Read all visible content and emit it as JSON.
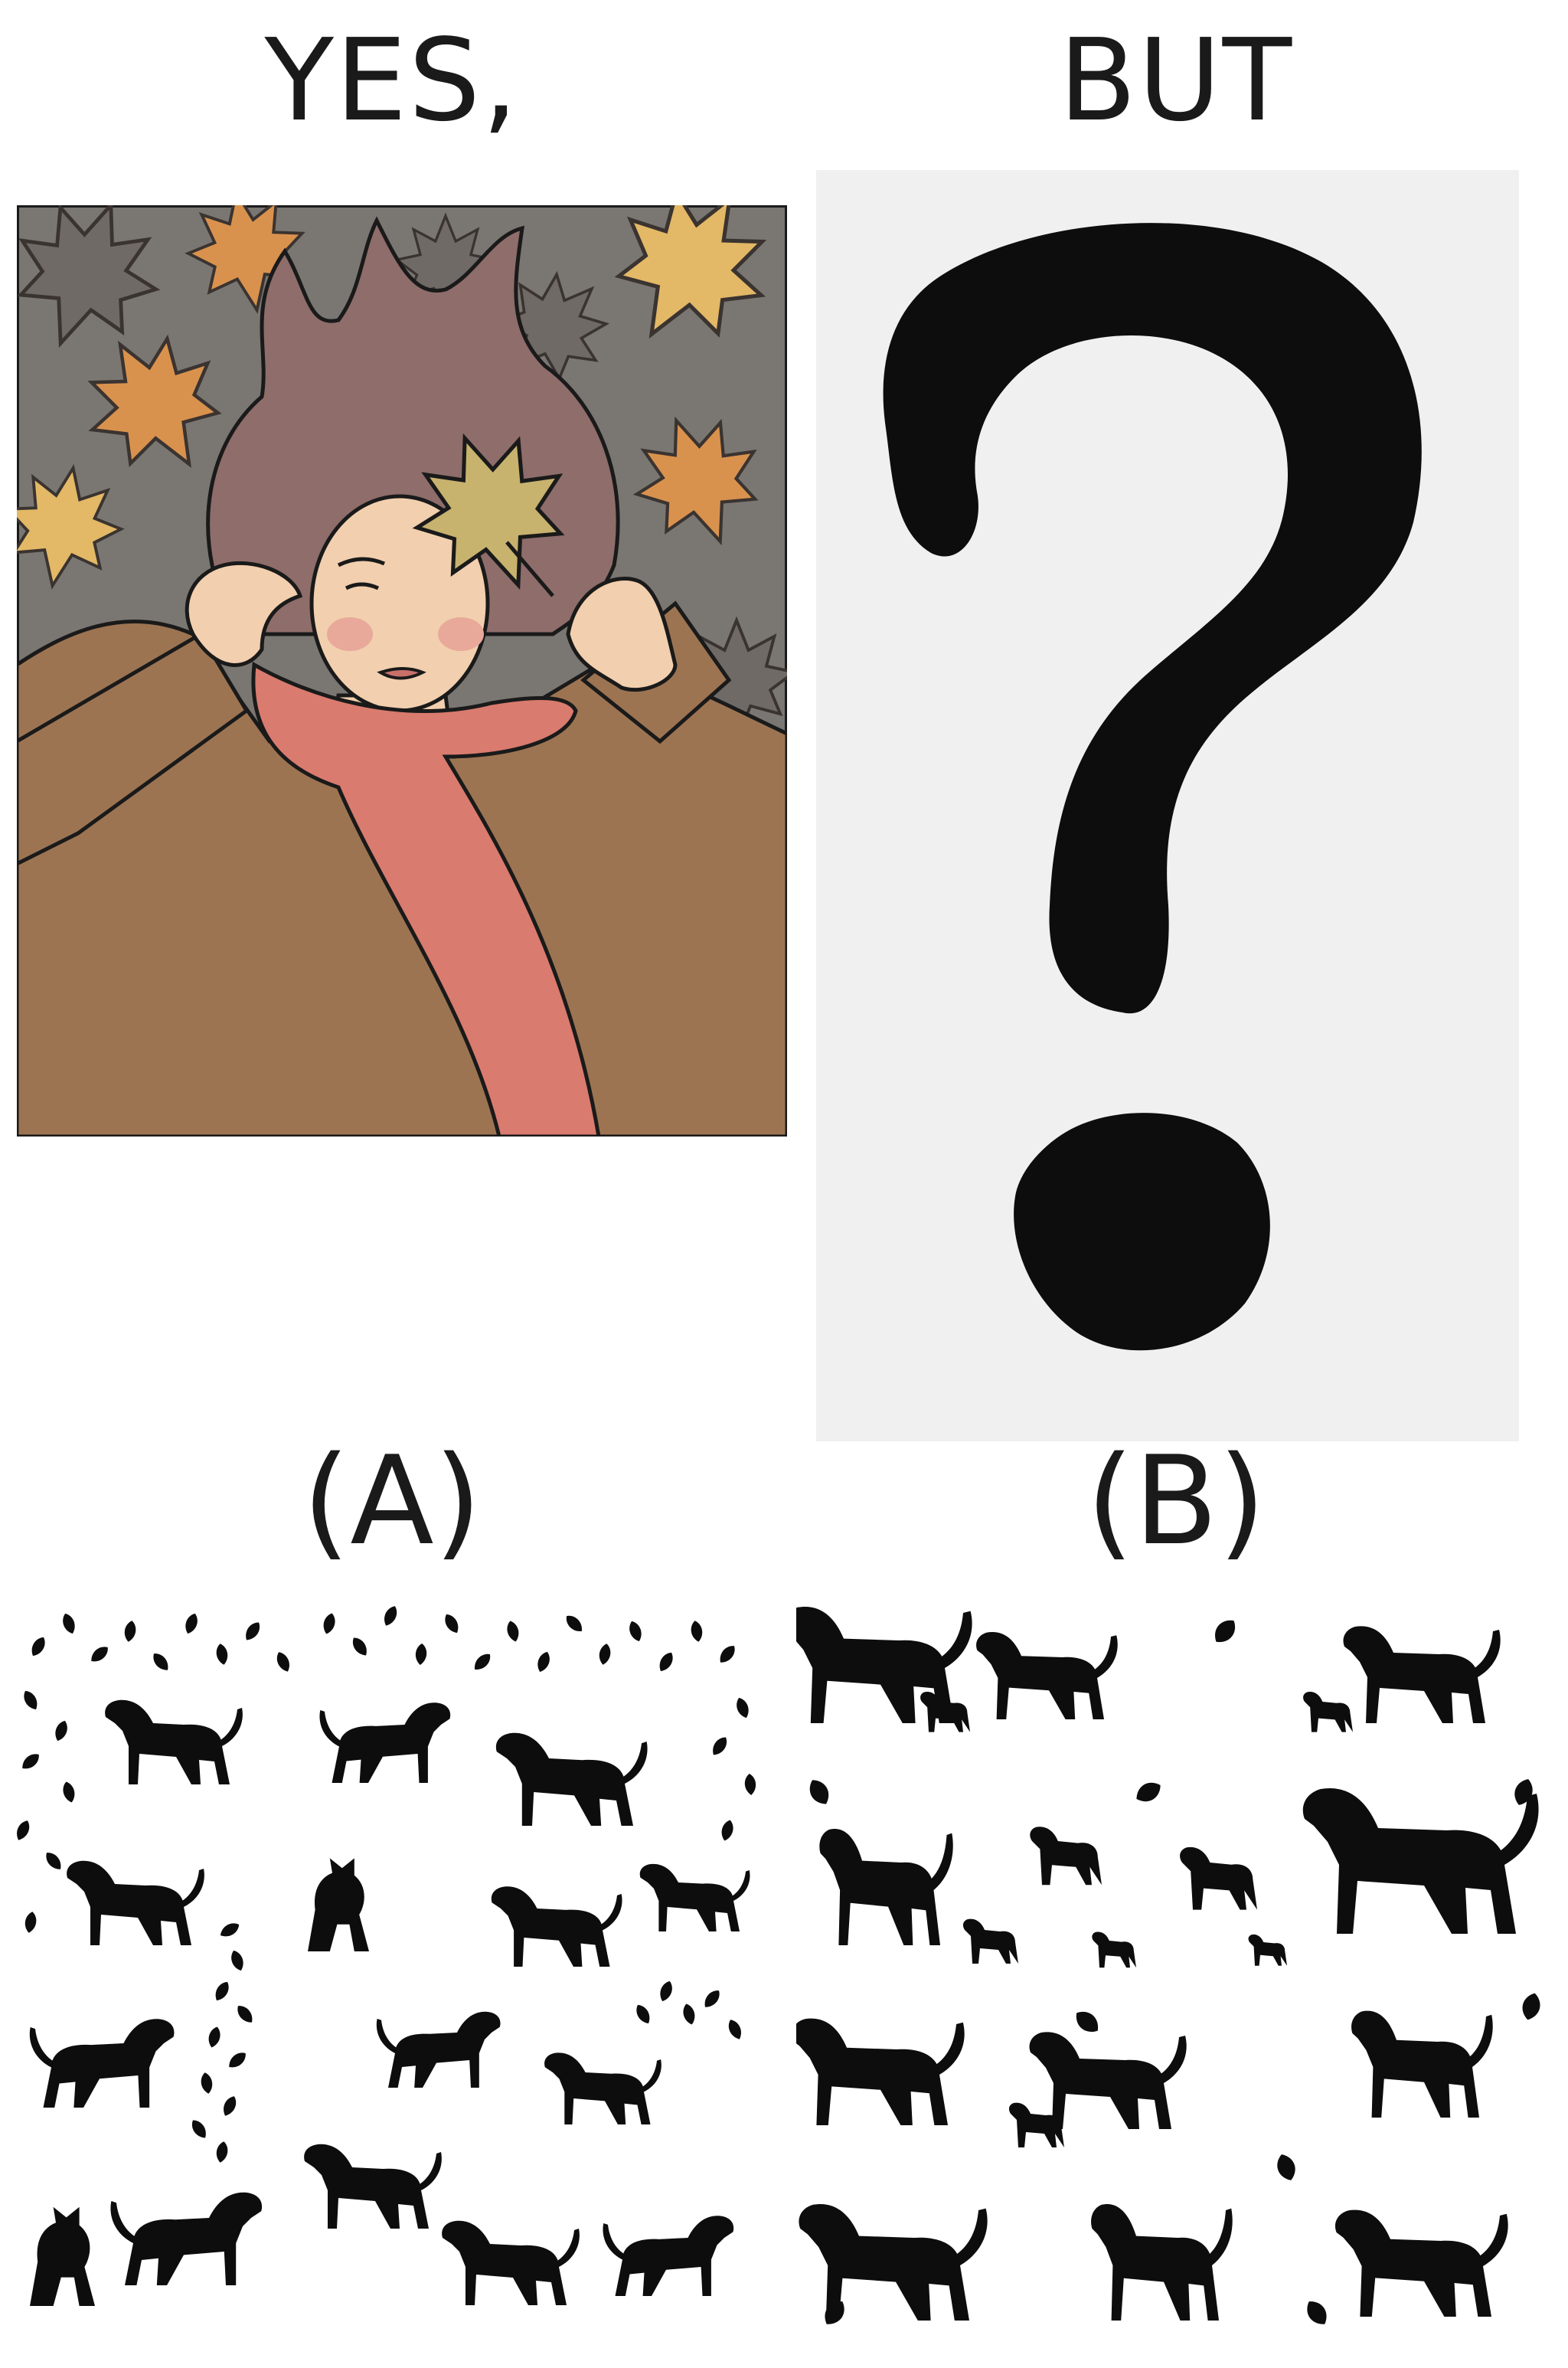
{
  "captions": {
    "top_left": "YES,",
    "top_right": "BUT",
    "option_a": "(A)",
    "option_b": "(B)"
  },
  "colors": {
    "panel_background": "#7a7672",
    "leaf_orange": "#d9924e",
    "leaf_yellow": "#e3b866",
    "coat": "#9d7452",
    "scarf": "#d97b6e",
    "hair": "#8e6d6a",
    "skin": "#f2cfae",
    "question_bg": "#f0f0f0",
    "silhouette": "#0d0d0d"
  },
  "icons": {
    "question_mark": "question-mark-icon",
    "dog": "dog-silhouette-icon",
    "cat": "cat-silhouette-icon",
    "leaf": "leaf-icon"
  }
}
